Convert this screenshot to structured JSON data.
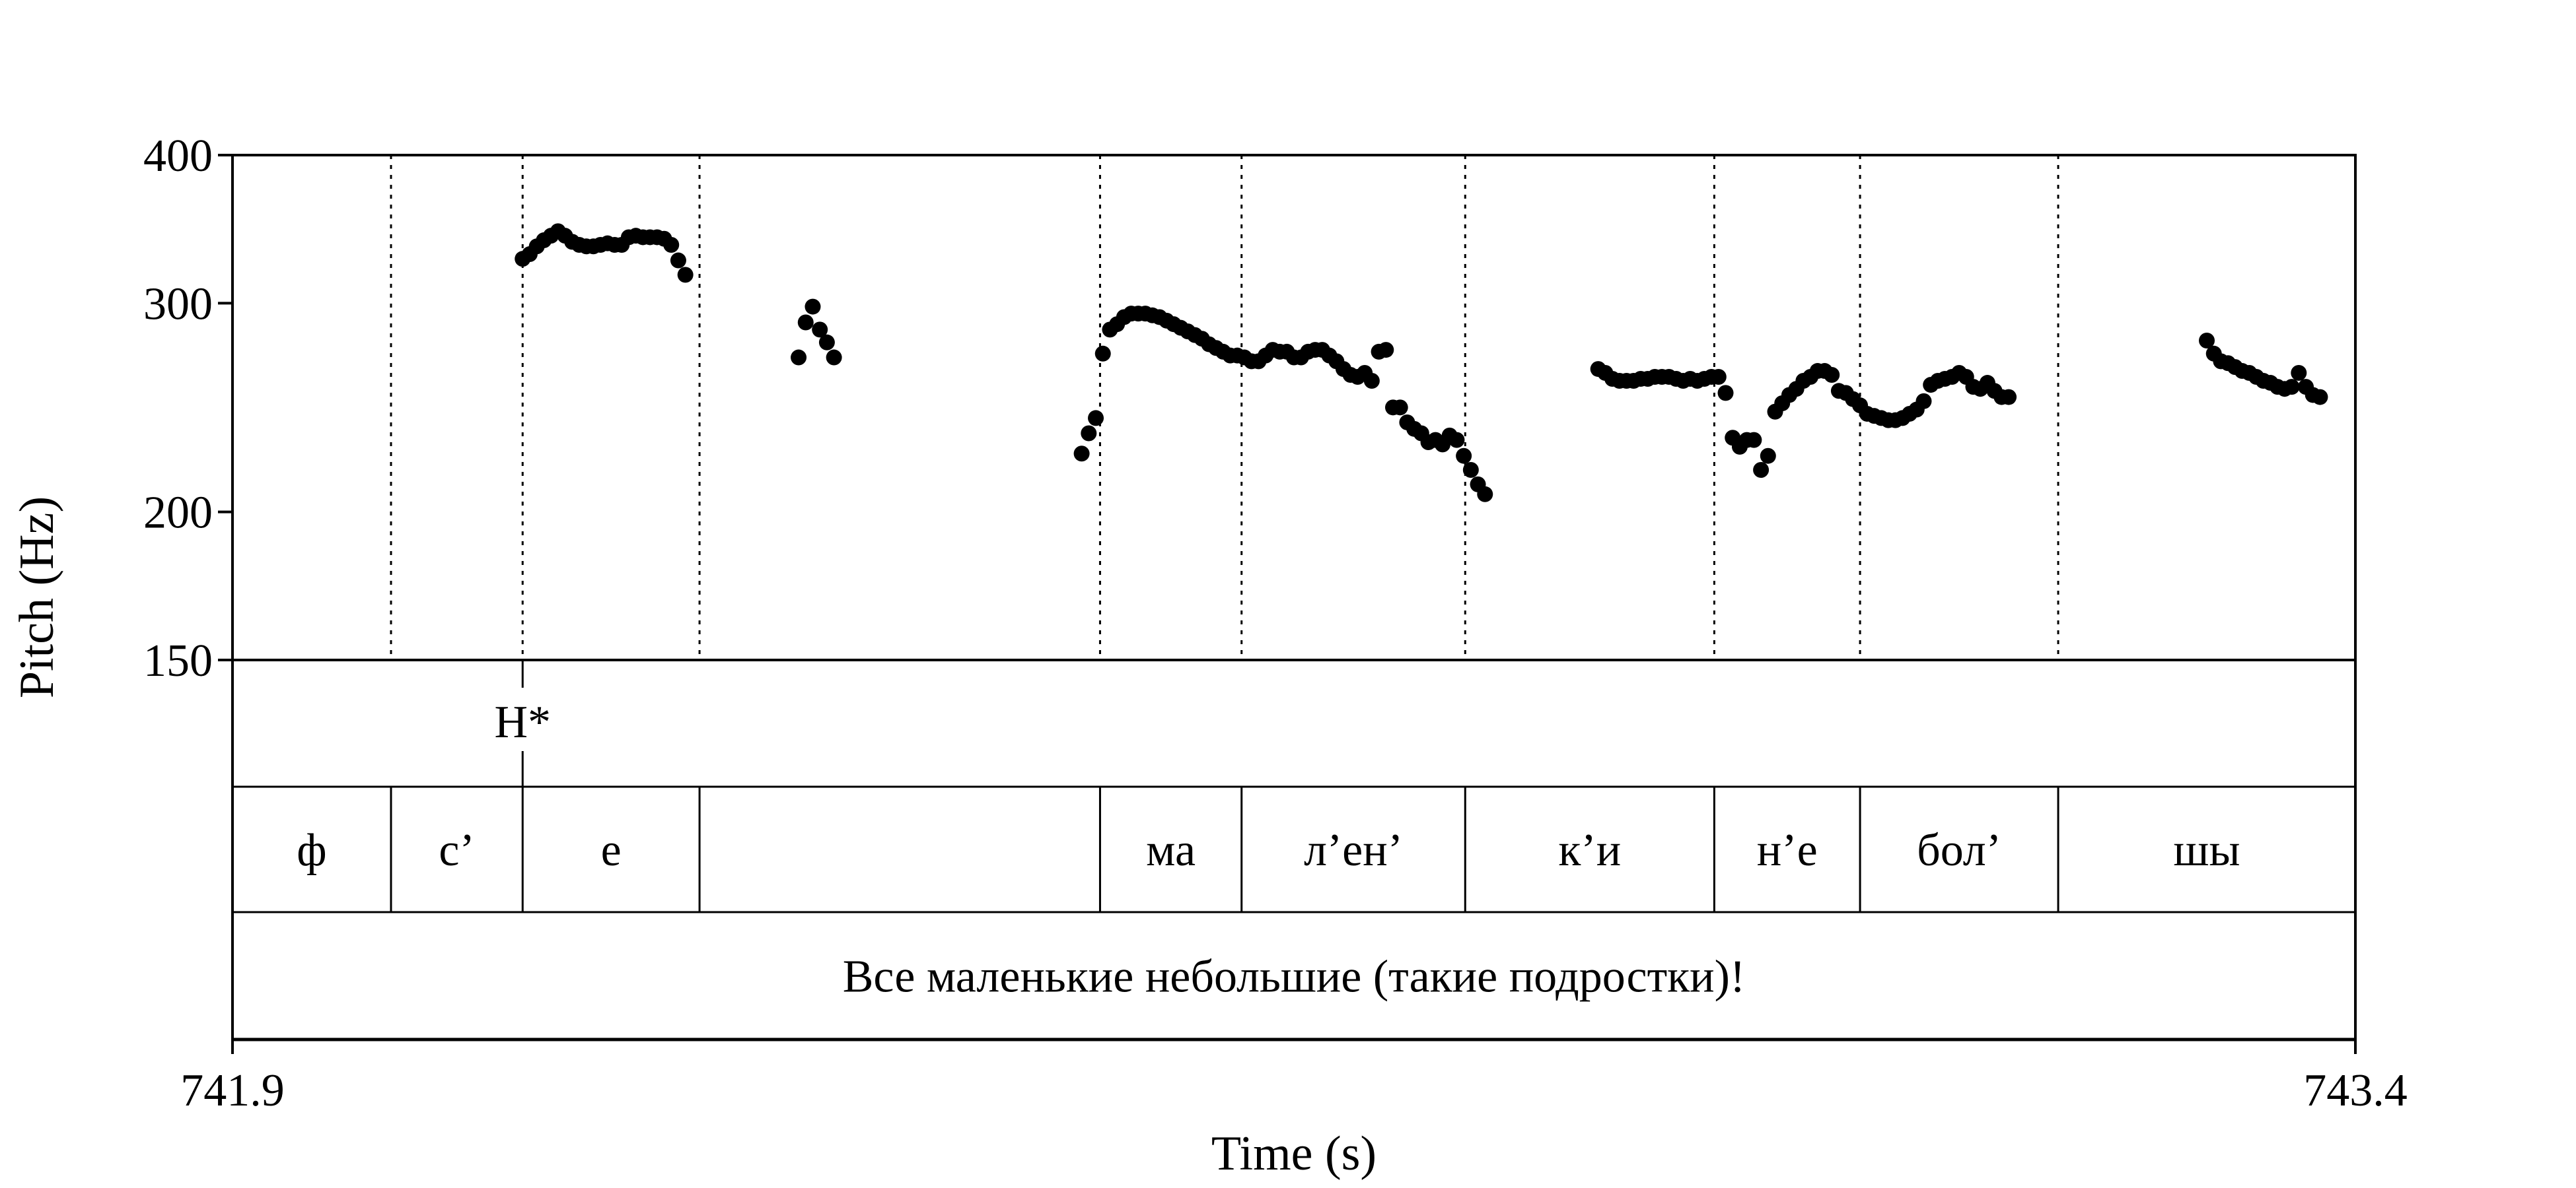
{
  "chart_data": {
    "type": "scatter",
    "xlabel": "Time (s)",
    "ylabel": "Pitch (Hz)",
    "xlim": [
      741.9,
      743.4
    ],
    "ylim": [
      150,
      400
    ],
    "y_scale": "log",
    "x_tick_labels": [
      "741.9",
      "743.4"
    ],
    "y_ticks": [
      150,
      200,
      300,
      400
    ],
    "y_tick_labels": [
      "150",
      "200",
      "300",
      "400"
    ],
    "grid": false,
    "boundaries": [
      742.012,
      742.105,
      742.23,
      742.513,
      742.613,
      742.771,
      742.947,
      743.05,
      743.19
    ],
    "tone_tier": [
      {
        "label": "H*",
        "time": 742.105
      }
    ],
    "syllable_tier": [
      {
        "label": "ф",
        "start": 741.9,
        "end": 742.012
      },
      {
        "label": "с’",
        "start": 742.012,
        "end": 742.105
      },
      {
        "label": "е",
        "start": 742.105,
        "end": 742.23
      },
      {
        "label": "",
        "start": 742.23,
        "end": 742.513
      },
      {
        "label": "ма",
        "start": 742.513,
        "end": 742.613
      },
      {
        "label": "л’ен’",
        "start": 742.613,
        "end": 742.771
      },
      {
        "label": "к’и",
        "start": 742.771,
        "end": 742.947
      },
      {
        "label": "н’е",
        "start": 742.947,
        "end": 743.05
      },
      {
        "label": "бол’",
        "start": 743.05,
        "end": 743.19
      },
      {
        "label": "шы",
        "start": 743.19,
        "end": 743.4
      }
    ],
    "sentence_tier": {
      "label": "Все маленькие небольшие (такие подростки)!",
      "start": 741.9,
      "end": 743.4
    },
    "points": [
      [
        742.105,
        327
      ],
      [
        742.11,
        330
      ],
      [
        742.115,
        335
      ],
      [
        742.12,
        339
      ],
      [
        742.125,
        342
      ],
      [
        742.13,
        345
      ],
      [
        742.135,
        342
      ],
      [
        742.14,
        338
      ],
      [
        742.145,
        336
      ],
      [
        742.15,
        335
      ],
      [
        742.155,
        335
      ],
      [
        742.16,
        336
      ],
      [
        742.165,
        337
      ],
      [
        742.17,
        336
      ],
      [
        742.175,
        336
      ],
      [
        742.18,
        341
      ],
      [
        742.185,
        342
      ],
      [
        742.19,
        341
      ],
      [
        742.195,
        341
      ],
      [
        742.2,
        341
      ],
      [
        742.205,
        340
      ],
      [
        742.21,
        336
      ],
      [
        742.215,
        326
      ],
      [
        742.22,
        317
      ],
      [
        742.3,
        270
      ],
      [
        742.305,
        289
      ],
      [
        742.31,
        298
      ],
      [
        742.315,
        285
      ],
      [
        742.32,
        278
      ],
      [
        742.325,
        270
      ],
      [
        742.5,
        224
      ],
      [
        742.505,
        233
      ],
      [
        742.51,
        240
      ],
      [
        742.515,
        272
      ],
      [
        742.52,
        285
      ],
      [
        742.525,
        288
      ],
      [
        742.53,
        292
      ],
      [
        742.535,
        294
      ],
      [
        742.54,
        294
      ],
      [
        742.545,
        294
      ],
      [
        742.55,
        293
      ],
      [
        742.555,
        292
      ],
      [
        742.56,
        290
      ],
      [
        742.565,
        288
      ],
      [
        742.57,
        286
      ],
      [
        742.575,
        284
      ],
      [
        742.58,
        282
      ],
      [
        742.585,
        280
      ],
      [
        742.59,
        277
      ],
      [
        742.595,
        275
      ],
      [
        742.6,
        273
      ],
      [
        742.605,
        271
      ],
      [
        742.61,
        271
      ],
      [
        742.615,
        270
      ],
      [
        742.62,
        268
      ],
      [
        742.625,
        268
      ],
      [
        742.63,
        271
      ],
      [
        742.635,
        274
      ],
      [
        742.64,
        273
      ],
      [
        742.645,
        273
      ],
      [
        742.65,
        270
      ],
      [
        742.655,
        270
      ],
      [
        742.66,
        273
      ],
      [
        742.665,
        274
      ],
      [
        742.67,
        274
      ],
      [
        742.675,
        271
      ],
      [
        742.68,
        268
      ],
      [
        742.685,
        264
      ],
      [
        742.69,
        261
      ],
      [
        742.695,
        260
      ],
      [
        742.7,
        262
      ],
      [
        742.705,
        258
      ],
      [
        742.71,
        273
      ],
      [
        742.715,
        274
      ],
      [
        742.72,
        245
      ],
      [
        742.725,
        245
      ],
      [
        742.73,
        238
      ],
      [
        742.735,
        235
      ],
      [
        742.74,
        233
      ],
      [
        742.745,
        229
      ],
      [
        742.75,
        230
      ],
      [
        742.755,
        228
      ],
      [
        742.76,
        232
      ],
      [
        742.765,
        230
      ],
      [
        742.77,
        223
      ],
      [
        742.775,
        217
      ],
      [
        742.78,
        211
      ],
      [
        742.785,
        207
      ],
      [
        742.865,
        264
      ],
      [
        742.87,
        262
      ],
      [
        742.875,
        259
      ],
      [
        742.88,
        258
      ],
      [
        742.885,
        258
      ],
      [
        742.89,
        258
      ],
      [
        742.895,
        259
      ],
      [
        742.9,
        259
      ],
      [
        742.905,
        260
      ],
      [
        742.91,
        260
      ],
      [
        742.915,
        260
      ],
      [
        742.92,
        259
      ],
      [
        742.925,
        258
      ],
      [
        742.93,
        259
      ],
      [
        742.935,
        258
      ],
      [
        742.94,
        259
      ],
      [
        742.945,
        260
      ],
      [
        742.95,
        260
      ],
      [
        742.955,
        252
      ],
      [
        742.96,
        231
      ],
      [
        742.965,
        227
      ],
      [
        742.97,
        230
      ],
      [
        742.975,
        230
      ],
      [
        742.98,
        217
      ],
      [
        742.985,
        223
      ],
      [
        742.99,
        243
      ],
      [
        742.995,
        247
      ],
      [
        743.0,
        251
      ],
      [
        743.005,
        254
      ],
      [
        743.01,
        258
      ],
      [
        743.015,
        260
      ],
      [
        743.02,
        263
      ],
      [
        743.025,
        263
      ],
      [
        743.03,
        261
      ],
      [
        743.035,
        253
      ],
      [
        743.04,
        252
      ],
      [
        743.045,
        249
      ],
      [
        743.05,
        246
      ],
      [
        743.055,
        242
      ],
      [
        743.06,
        241
      ],
      [
        743.065,
        240
      ],
      [
        743.07,
        239
      ],
      [
        743.075,
        239
      ],
      [
        743.08,
        240
      ],
      [
        743.085,
        242
      ],
      [
        743.09,
        244
      ],
      [
        743.095,
        248
      ],
      [
        743.1,
        256
      ],
      [
        743.105,
        258
      ],
      [
        743.11,
        259
      ],
      [
        743.115,
        260
      ],
      [
        743.12,
        262
      ],
      [
        743.125,
        260
      ],
      [
        743.13,
        255
      ],
      [
        743.135,
        254
      ],
      [
        743.14,
        257
      ],
      [
        743.145,
        253
      ],
      [
        743.15,
        250
      ],
      [
        743.155,
        250
      ],
      [
        743.295,
        279
      ],
      [
        743.3,
        272
      ],
      [
        743.305,
        268
      ],
      [
        743.31,
        267
      ],
      [
        743.315,
        265
      ],
      [
        743.32,
        263
      ],
      [
        743.325,
        262
      ],
      [
        743.33,
        260
      ],
      [
        743.335,
        258
      ],
      [
        743.34,
        257
      ],
      [
        743.345,
        255
      ],
      [
        743.35,
        254
      ],
      [
        743.355,
        255
      ],
      [
        743.36,
        262
      ],
      [
        743.365,
        255
      ],
      [
        743.37,
        251
      ],
      [
        743.375,
        250
      ]
    ]
  }
}
